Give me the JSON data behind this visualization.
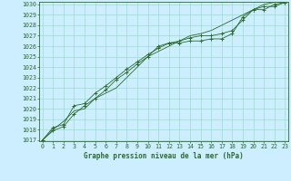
{
  "xlabel": "Graphe pression niveau de la mer (hPa)",
  "x": [
    0,
    1,
    2,
    3,
    4,
    5,
    6,
    7,
    8,
    9,
    10,
    11,
    12,
    13,
    14,
    15,
    16,
    17,
    18,
    19,
    20,
    21,
    22,
    23
  ],
  "line1": [
    1017.0,
    1017.9,
    1018.3,
    1019.5,
    1020.3,
    1021.0,
    1021.8,
    1022.8,
    1023.5,
    1024.3,
    1025.0,
    1026.0,
    1026.3,
    1026.3,
    1026.5,
    1026.5,
    1026.7,
    1026.7,
    1027.2,
    1028.8,
    1029.5,
    1029.5,
    1030.0,
    1030.2
  ],
  "line2": [
    1017.0,
    1018.2,
    1018.5,
    1020.3,
    1020.5,
    1021.5,
    1022.2,
    1023.0,
    1023.8,
    1024.5,
    1025.2,
    1025.8,
    1026.3,
    1026.5,
    1026.8,
    1027.0,
    1027.0,
    1027.2,
    1027.5,
    1028.5,
    1029.5,
    1029.8,
    1029.8,
    1030.2
  ],
  "line3": [
    1017.0,
    1018.0,
    1018.8,
    1019.8,
    1020.0,
    1021.0,
    1021.5,
    1022.0,
    1023.0,
    1024.0,
    1025.0,
    1025.5,
    1026.0,
    1026.5,
    1027.0,
    1027.2,
    1027.5,
    1028.0,
    1028.5,
    1029.0,
    1029.5,
    1030.0,
    1030.2,
    1030.2
  ],
  "line_color": "#2d6a2d",
  "bg_color": "#cceeff",
  "grid_color": "#99ddcc",
  "ylim_min": 1017,
  "ylim_max": 1030,
  "yticks": [
    1017,
    1018,
    1019,
    1020,
    1021,
    1022,
    1023,
    1024,
    1025,
    1026,
    1027,
    1028,
    1029,
    1030
  ],
  "xticks": [
    0,
    1,
    2,
    3,
    4,
    5,
    6,
    7,
    8,
    9,
    10,
    11,
    12,
    13,
    14,
    15,
    16,
    17,
    18,
    19,
    20,
    21,
    22,
    23
  ],
  "label_fontsize": 5.5,
  "tick_fontsize": 4.8
}
